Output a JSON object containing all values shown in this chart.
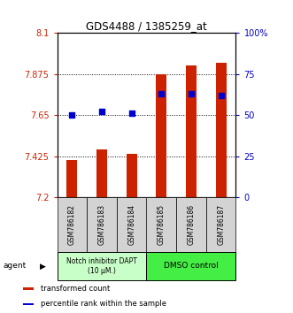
{
  "title": "GDS4488 / 1385259_at",
  "samples": [
    "GSM786182",
    "GSM786183",
    "GSM786184",
    "GSM786185",
    "GSM786186",
    "GSM786187"
  ],
  "transformed_counts": [
    7.405,
    7.46,
    7.435,
    7.875,
    7.92,
    7.935
  ],
  "percentile_ranks": [
    50,
    52,
    51,
    63,
    63,
    62
  ],
  "bar_bottom": 7.2,
  "ylim_left": [
    7.2,
    8.1
  ],
  "ylim_right": [
    0,
    100
  ],
  "yticks_left": [
    7.2,
    7.425,
    7.65,
    7.875,
    8.1
  ],
  "yticks_right": [
    0,
    25,
    50,
    75,
    100
  ],
  "ytick_labels_left": [
    "7.2",
    "7.425",
    "7.65",
    "7.875",
    "8.1"
  ],
  "ytick_labels_right": [
    "0",
    "25",
    "50",
    "75",
    "100%"
  ],
  "hlines": [
    7.425,
    7.65,
    7.875
  ],
  "groups": [
    {
      "label": "Notch inhibitor DAPT\n(10 μM.)",
      "color": "#b3ffb3"
    },
    {
      "label": "DMSO control",
      "color": "#33dd33"
    }
  ],
  "bar_color": "#cc2200",
  "dot_color": "#0000cc",
  "bar_width": 0.35,
  "dot_size": 18,
  "agent_label": "agent",
  "legend_items": [
    {
      "color": "#cc2200",
      "label": "transformed count"
    },
    {
      "color": "#0000cc",
      "label": "percentile rank within the sample"
    }
  ],
  "left_axis_color": "#cc2200",
  "right_axis_color": "#0000cc",
  "tick_label_bg": "#d3d3d3",
  "notch_color": "#c8ffc8",
  "dmso_color": "#44ee44"
}
